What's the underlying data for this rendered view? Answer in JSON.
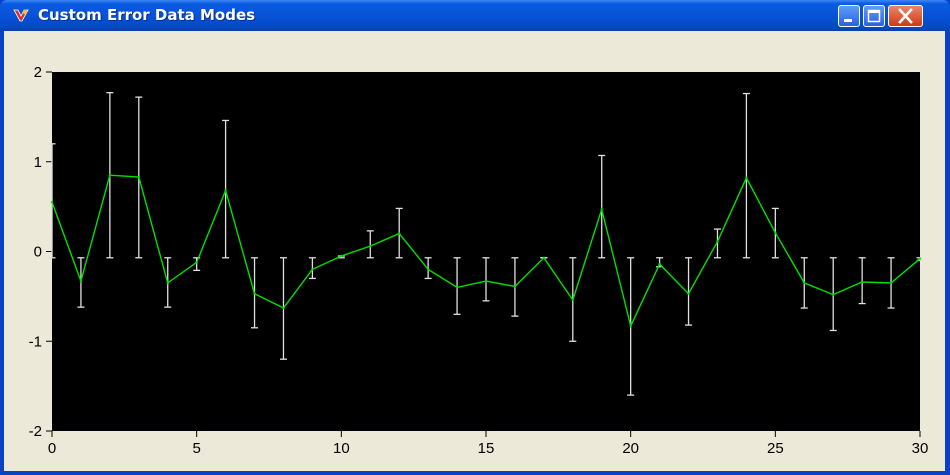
{
  "window": {
    "title": "Custom Error Data Modes",
    "minimize_icon": "minimize-icon",
    "maximize_icon": "maximize-icon",
    "close_icon": "close-icon"
  },
  "colors": {
    "plot_background": "#000000",
    "line": "#00e000",
    "error_bars": "#e0e0e0",
    "window_background": "#ece9d8"
  },
  "chart_data": {
    "type": "line",
    "title": "",
    "xlabel": "",
    "ylabel": "",
    "xlim": [
      0,
      30
    ],
    "ylim": [
      -2,
      2
    ],
    "xticks": [
      0,
      5,
      10,
      15,
      20,
      25,
      30
    ],
    "yticks": [
      2,
      1,
      0,
      -1,
      -2
    ],
    "grid": false,
    "series": [
      {
        "x": [
          0,
          1,
          2,
          3,
          4,
          5,
          6,
          7,
          8,
          9,
          10,
          11,
          12,
          13,
          14,
          15,
          16,
          17,
          18,
          19,
          20,
          21,
          22,
          23,
          24,
          25,
          26,
          27,
          28,
          29,
          30
        ],
        "y": [
          0.55,
          -0.33,
          0.85,
          0.83,
          -0.35,
          -0.12,
          0.68,
          -0.47,
          -0.63,
          -0.2,
          -0.05,
          0.06,
          0.2,
          -0.2,
          -0.4,
          -0.33,
          -0.39,
          -0.07,
          -0.54,
          0.47,
          -0.83,
          -0.14,
          -0.47,
          0.11,
          0.82,
          0.21,
          -0.35,
          -0.48,
          -0.34,
          -0.35,
          -0.08
        ],
        "error_low": [
          -0.07,
          -0.62,
          -0.07,
          -0.07,
          -0.62,
          -0.21,
          -0.07,
          -0.85,
          -1.2,
          -0.3,
          -0.07,
          -0.07,
          -0.07,
          -0.3,
          -0.7,
          -0.55,
          -0.72,
          -0.07,
          -1.0,
          -0.07,
          -1.6,
          -0.17,
          -0.82,
          -0.07,
          -0.07,
          -0.07,
          -0.63,
          -0.88,
          -0.58,
          -0.63,
          -0.1
        ],
        "error_high": [
          1.2,
          -0.07,
          1.77,
          1.72,
          -0.07,
          -0.07,
          1.46,
          -0.07,
          -0.07,
          -0.07,
          -0.05,
          0.23,
          0.48,
          -0.07,
          -0.07,
          -0.07,
          -0.07,
          -0.07,
          -0.07,
          1.07,
          -0.07,
          -0.07,
          -0.07,
          0.25,
          1.76,
          0.48,
          -0.07,
          -0.07,
          -0.07,
          -0.07,
          -0.07
        ]
      }
    ]
  }
}
